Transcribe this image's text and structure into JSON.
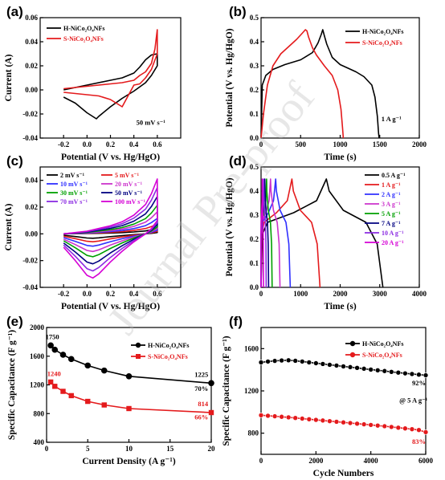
{
  "watermark": "Journal Pre-proof",
  "chart_data": [
    {
      "panel": "(a)",
      "type": "line",
      "xlabel": "Potential (V vs. Hg/HgO)",
      "ylabel": "Current (A)",
      "xlim": [
        -0.4,
        0.8
      ],
      "ylim": [
        -0.04,
        0.06
      ],
      "xticks": [
        -0.2,
        0.0,
        0.2,
        0.4,
        0.6
      ],
      "yticks": [
        -0.04,
        -0.02,
        0.0,
        0.02,
        0.04,
        0.06
      ],
      "xtick_labels": [
        "-0.2",
        "0.0",
        "0.2",
        "0.4",
        "0.6"
      ],
      "ytick_labels": [
        "-0.04",
        "-0.02",
        "0.00",
        "0.02",
        "0.04",
        "0.06"
      ],
      "legend": "top-left",
      "annotations": [
        {
          "text": "50 mV s⁻¹",
          "x": 0.42,
          "y": -0.029
        }
      ],
      "series": [
        {
          "name": "H-NiCo₂O₄NFs",
          "color": "#000000",
          "x": [
            -0.2,
            0.0,
            0.2,
            0.3,
            0.4,
            0.45,
            0.5,
            0.55,
            0.6,
            0.6,
            0.55,
            0.5,
            0.4,
            0.3,
            0.2,
            0.1,
            0.08,
            0.0,
            -0.1,
            -0.2
          ],
          "y": [
            0.0,
            0.004,
            0.008,
            0.01,
            0.014,
            0.019,
            0.025,
            0.029,
            0.03,
            0.02,
            0.012,
            0.006,
            -0.001,
            -0.007,
            -0.014,
            -0.022,
            -0.024,
            -0.019,
            -0.011,
            -0.006
          ]
        },
        {
          "name": "S-NiCo₂O₄NFs",
          "color": "#e41a1c",
          "x": [
            -0.2,
            0.0,
            0.2,
            0.3,
            0.4,
            0.45,
            0.5,
            0.55,
            0.58,
            0.6,
            0.6,
            0.55,
            0.5,
            0.45,
            0.4,
            0.35,
            0.3,
            0.25,
            0.2,
            0.1,
            0.0,
            -0.1,
            -0.2
          ],
          "y": [
            0.001,
            0.003,
            0.005,
            0.006,
            0.008,
            0.012,
            0.015,
            0.022,
            0.034,
            0.05,
            0.03,
            0.017,
            0.01,
            0.005,
            0.004,
            -0.005,
            -0.014,
            -0.011,
            -0.008,
            -0.005,
            -0.004,
            -0.003,
            -0.002
          ]
        }
      ]
    },
    {
      "panel": "(b)",
      "type": "line",
      "xlabel": "Time (s)",
      "ylabel": "Potential (V vs. Hg/HgO)",
      "xlim": [
        0,
        2000
      ],
      "ylim": [
        0,
        0.5
      ],
      "xticks": [
        0,
        500,
        1000,
        1500,
        2000
      ],
      "yticks": [
        0.0,
        0.1,
        0.2,
        0.3,
        0.4,
        0.5
      ],
      "xtick_labels": [
        "0",
        "500",
        "1000",
        "1500",
        "2000"
      ],
      "ytick_labels": [
        "0.0",
        "0.1",
        "0.2",
        "0.3",
        "0.4",
        "0.5"
      ],
      "legend": "top-right",
      "annotations": [
        {
          "text": "1 A g⁻¹",
          "x": 1520,
          "y": 0.07
        }
      ],
      "series": [
        {
          "name": "H-NiCo₂O₄NFs",
          "color": "#000000",
          "x": [
            0,
            15,
            60,
            150,
            300,
            500,
            650,
            720,
            760,
            780,
            800,
            830,
            900,
            1000,
            1100,
            1200,
            1300,
            1400,
            1440,
            1470,
            1485,
            1492
          ],
          "y": [
            0.0,
            0.22,
            0.26,
            0.285,
            0.305,
            0.325,
            0.355,
            0.395,
            0.43,
            0.45,
            0.425,
            0.39,
            0.335,
            0.305,
            0.29,
            0.275,
            0.255,
            0.22,
            0.17,
            0.09,
            0.02,
            0.0
          ]
        },
        {
          "name": "S-NiCo₂O₄NFs",
          "color": "#e41a1c",
          "x": [
            0,
            30,
            80,
            150,
            250,
            350,
            450,
            520,
            560,
            580,
            600,
            650,
            700,
            800,
            900,
            970,
            1010,
            1030,
            1040
          ],
          "y": [
            0.0,
            0.1,
            0.22,
            0.3,
            0.35,
            0.38,
            0.41,
            0.435,
            0.45,
            0.445,
            0.42,
            0.375,
            0.345,
            0.3,
            0.26,
            0.2,
            0.12,
            0.04,
            0.0
          ]
        }
      ]
    },
    {
      "panel": "(c)",
      "type": "line",
      "xlabel": "Potential (V vs. Hg/HgO)",
      "ylabel": "Current (A)",
      "xlim": [
        -0.4,
        0.8
      ],
      "ylim": [
        -0.04,
        0.05
      ],
      "xticks": [
        -0.2,
        0.0,
        0.2,
        0.4,
        0.6
      ],
      "yticks": [
        -0.04,
        -0.02,
        0.0,
        0.02,
        0.04
      ],
      "xtick_labels": [
        "-0.2",
        "0.0",
        "0.2",
        "0.4",
        "0.6"
      ],
      "ytick_labels": [
        "-0.04",
        "-0.02",
        "0.00",
        "0.02",
        "0.04"
      ],
      "legend": "top",
      "series": [
        {
          "name": "2 mV s⁻¹",
          "color": "#000000",
          "scale": 0.1
        },
        {
          "name": "5 mV s⁻¹",
          "color": "#e41a1c",
          "scale": 0.18
        },
        {
          "name": "10 mV s⁻¹",
          "color": "#3030ff",
          "scale": 0.28
        },
        {
          "name": "20 mV s⁻¹",
          "color": "#cc33cc",
          "scale": 0.4
        },
        {
          "name": "30 mV s⁻¹",
          "color": "#00a000",
          "scale": 0.52
        },
        {
          "name": "50 mV s⁻¹",
          "color": "#000080",
          "scale": 0.68
        },
        {
          "name": "70 mV s⁻¹",
          "color": "#8b2be2",
          "scale": 0.84
        },
        {
          "name": "100 mV s⁻¹",
          "color": "#d500d5",
          "scale": 1.0
        }
      ],
      "curve_template": {
        "x_up": [
          -0.2,
          0.0,
          0.2,
          0.3,
          0.4,
          0.5,
          0.55,
          0.6
        ],
        "y_up": [
          0.0,
          0.002,
          0.006,
          0.009,
          0.014,
          0.022,
          0.03,
          0.041
        ],
        "x_down": [
          0.6,
          0.55,
          0.5,
          0.4,
          0.3,
          0.2,
          0.1,
          0.05,
          0.0,
          -0.1,
          -0.2
        ],
        "y_down": [
          0.01,
          0.004,
          0.0,
          -0.006,
          -0.013,
          -0.021,
          -0.03,
          -0.033,
          -0.031,
          -0.02,
          -0.01
        ]
      }
    },
    {
      "panel": "(d)",
      "type": "line",
      "xlabel": "Time (s)",
      "ylabel": "Potential (V vs. Hg/HgO)",
      "xlim": [
        0,
        4000
      ],
      "ylim": [
        0,
        0.5
      ],
      "xticks": [
        0,
        1000,
        2000,
        3000,
        4000
      ],
      "yticks": [
        0.0,
        0.1,
        0.2,
        0.3,
        0.4,
        0.5
      ],
      "xtick_labels": [
        "0",
        "1000",
        "2000",
        "3000",
        "4000"
      ],
      "ytick_labels": [
        "0.0",
        "0.1",
        "0.2",
        "0.3",
        "0.4",
        "0.5"
      ],
      "legend": "right",
      "series": [
        {
          "name": "0.5 A g⁻¹",
          "color": "#000000",
          "charge": 1650,
          "total": 3080
        },
        {
          "name": "1 A g⁻¹",
          "color": "#e41a1c",
          "charge": 780,
          "total": 1490
        },
        {
          "name": "2 A g⁻¹",
          "color": "#3030ff",
          "charge": 370,
          "total": 740
        },
        {
          "name": "3 A g⁻¹",
          "color": "#cc33cc",
          "charge": 240,
          "total": 480
        },
        {
          "name": "5 A g⁻¹",
          "color": "#00a000",
          "charge": 140,
          "total": 280
        },
        {
          "name": "7 A g⁻¹",
          "color": "#000080",
          "charge": 95,
          "total": 190
        },
        {
          "name": "10 A g⁻¹",
          "color": "#8b2be2",
          "charge": 65,
          "total": 130
        },
        {
          "name": "20 A g⁻¹",
          "color": "#d500d5",
          "charge": 30,
          "total": 60
        }
      ]
    },
    {
      "panel": "(e)",
      "type": "line",
      "xlabel": "Current Density (A g⁻¹)",
      "ylabel": "Specific Capacitance (F g⁻¹)",
      "xlim": [
        0,
        20
      ],
      "ylim": [
        400,
        2000
      ],
      "xticks": [
        0,
        5,
        10,
        15,
        20
      ],
      "yticks": [
        400,
        800,
        1200,
        1600,
        2000
      ],
      "xtick_labels": [
        "0",
        "5",
        "10",
        "15",
        "20"
      ],
      "ytick_labels": [
        "400",
        "800",
        "1200",
        "1600",
        "2000"
      ],
      "legend": "top-right",
      "annotations": [
        {
          "text": "1750",
          "x": 0.7,
          "y": 1835,
          "color": "#000000"
        },
        {
          "text": "1225",
          "x": 18.8,
          "y": 1310,
          "color": "#000000"
        },
        {
          "text": "70%",
          "x": 18.8,
          "y": 1115,
          "color": "#000000"
        },
        {
          "text": "1240",
          "x": 0.9,
          "y": 1325,
          "color": "#e41a1c"
        },
        {
          "text": "814",
          "x": 19.0,
          "y": 905,
          "color": "#e41a1c"
        },
        {
          "text": "66%",
          "x": 18.8,
          "y": 720,
          "color": "#e41a1c"
        }
      ],
      "series": [
        {
          "name": "H-NiCo₂O₄NFs",
          "color": "#000000",
          "marker": "circle",
          "x": [
            0.5,
            1,
            2,
            3,
            5,
            7,
            10,
            20
          ],
          "y": [
            1750,
            1690,
            1620,
            1560,
            1470,
            1400,
            1320,
            1225
          ]
        },
        {
          "name": "S-NiCo₂O₄NFs",
          "color": "#e41a1c",
          "marker": "square",
          "x": [
            0.5,
            1,
            2,
            3,
            5,
            7,
            10,
            20
          ],
          "y": [
            1240,
            1180,
            1110,
            1050,
            970,
            920,
            870,
            814
          ]
        }
      ]
    },
    {
      "panel": "(f)",
      "type": "scatter",
      "xlabel": "Cycle Numbers",
      "ylabel": "Specific Capacitance (F g⁻¹)",
      "xlim": [
        0,
        6000
      ],
      "ylim": [
        600,
        1800
      ],
      "xticks": [
        0,
        2000,
        4000,
        6000
      ],
      "yticks": [
        800,
        1200,
        1600
      ],
      "xtick_labels": [
        "0",
        "2000",
        "4000",
        "6000"
      ],
      "ytick_labels": [
        "800",
        "1200",
        "1600"
      ],
      "legend": "top-right",
      "annotations": [
        {
          "text": "92%",
          "x": 5750,
          "y": 1255,
          "color": "#000000"
        },
        {
          "text": "@ 5 A g⁻¹",
          "x": 5550,
          "y": 1090,
          "color": "#000000"
        },
        {
          "text": "83%",
          "x": 5750,
          "y": 700,
          "color": "#e41a1c"
        }
      ],
      "series": [
        {
          "name": "H-NiCo₂O₄NFs",
          "color": "#000000",
          "marker": "circle",
          "x": [
            0,
            250,
            500,
            750,
            1000,
            1250,
            1500,
            1750,
            2000,
            2250,
            2500,
            2750,
            3000,
            3250,
            3500,
            3750,
            4000,
            4250,
            4500,
            4750,
            5000,
            5250,
            5500,
            5750,
            6000
          ],
          "y": [
            1470,
            1478,
            1484,
            1488,
            1490,
            1485,
            1478,
            1470,
            1462,
            1455,
            1447,
            1440,
            1432,
            1425,
            1418,
            1410,
            1402,
            1395,
            1388,
            1380,
            1373,
            1366,
            1360,
            1354,
            1348
          ]
        },
        {
          "name": "S-NiCo₂O₄NFs",
          "color": "#e41a1c",
          "marker": "circle",
          "x": [
            0,
            250,
            500,
            750,
            1000,
            1250,
            1500,
            1750,
            2000,
            2250,
            2500,
            2750,
            3000,
            3250,
            3500,
            3750,
            4000,
            4250,
            4500,
            4750,
            5000,
            5250,
            5500,
            5750,
            6000
          ],
          "y": [
            970,
            965,
            960,
            955,
            950,
            944,
            938,
            932,
            926,
            920,
            914,
            908,
            902,
            896,
            890,
            884,
            878,
            872,
            866,
            859,
            852,
            845,
            838,
            830,
            810
          ]
        }
      ]
    }
  ]
}
